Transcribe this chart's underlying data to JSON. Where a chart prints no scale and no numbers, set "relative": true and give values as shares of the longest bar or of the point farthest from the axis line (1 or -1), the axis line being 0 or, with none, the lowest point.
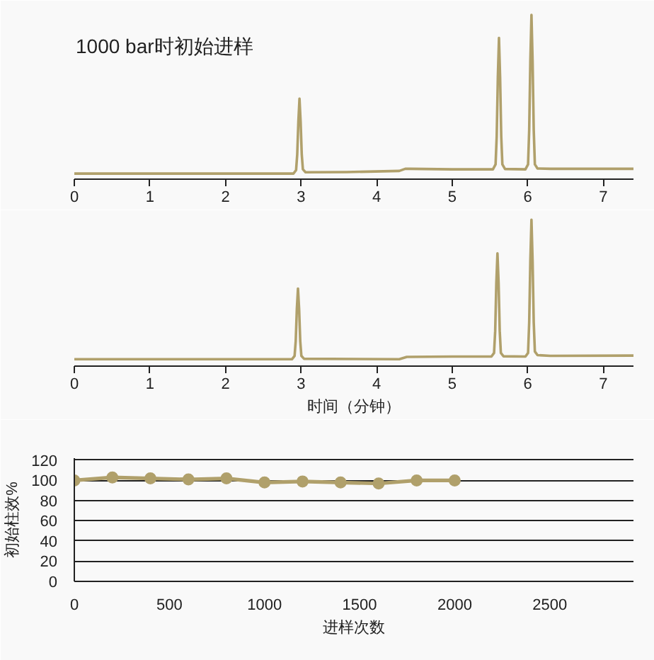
{
  "chart_data": [
    {
      "type": "line",
      "title": "1000 bar时初始进样",
      "relative": true,
      "x": [
        0,
        2.9,
        2.935,
        2.95,
        2.965,
        2.98,
        2.995,
        3.01,
        3.025,
        3.06,
        3.6,
        4.3,
        4.38,
        4.45,
        5.0,
        5.54,
        5.575,
        5.59,
        5.605,
        5.62,
        5.635,
        5.65,
        5.665,
        5.7,
        5.97,
        6.005,
        6.02,
        6.035,
        6.05,
        6.065,
        6.08,
        6.095,
        6.13,
        6.3,
        7.4
      ],
      "series": [
        {
          "color": "#b0a06b",
          "values": [
            0.034,
            0.034,
            0.055,
            0.15,
            0.35,
            0.49,
            0.35,
            0.15,
            0.06,
            0.042,
            0.043,
            0.05,
            0.063,
            0.063,
            0.06,
            0.06,
            0.09,
            0.26,
            0.62,
            0.86,
            0.62,
            0.26,
            0.09,
            0.062,
            0.06,
            0.09,
            0.3,
            0.72,
            1.0,
            0.72,
            0.3,
            0.09,
            0.065,
            0.063,
            0.063
          ]
        }
      ],
      "xlim": [
        0,
        7.4
      ],
      "xticks": [
        0,
        1,
        2,
        3,
        4,
        5,
        6,
        7
      ]
    },
    {
      "type": "line",
      "xlabel": "时间（分钟）",
      "relative": true,
      "x": [
        0,
        2.88,
        2.915,
        2.93,
        2.945,
        2.96,
        2.975,
        2.99,
        3.005,
        3.04,
        4.3,
        4.4,
        5.0,
        5.52,
        5.555,
        5.57,
        5.585,
        5.6,
        5.615,
        5.63,
        5.645,
        5.68,
        5.97,
        6.005,
        6.02,
        6.035,
        6.05,
        6.065,
        6.08,
        6.095,
        6.13,
        6.3,
        7.4
      ],
      "series": [
        {
          "color": "#b0a06b",
          "values": [
            0.047,
            0.047,
            0.07,
            0.17,
            0.39,
            0.53,
            0.39,
            0.17,
            0.07,
            0.05,
            0.047,
            0.063,
            0.065,
            0.065,
            0.09,
            0.24,
            0.57,
            0.77,
            0.57,
            0.24,
            0.09,
            0.067,
            0.065,
            0.09,
            0.3,
            0.72,
            1.0,
            0.72,
            0.3,
            0.1,
            0.075,
            0.07,
            0.072
          ]
        }
      ],
      "xlim": [
        0,
        7.4
      ],
      "xticks": [
        0,
        1,
        2,
        3,
        4,
        5,
        6,
        7
      ]
    },
    {
      "type": "line",
      "xlabel": "进样次数",
      "ylabel": "初始柱效%",
      "x": [
        0,
        200,
        400,
        600,
        800,
        1000,
        1200,
        1400,
        1600,
        1800,
        2000
      ],
      "series": [
        {
          "color": "#b0a06b",
          "values": [
            100,
            103,
            102,
            101,
            102,
            98,
            99,
            98,
            97,
            100,
            100
          ]
        }
      ],
      "xlim": [
        0,
        2940
      ],
      "xticks": [
        0,
        500,
        1000,
        1500,
        2000,
        2500
      ],
      "ylim": [
        0,
        120
      ],
      "yticks": [
        0,
        20,
        40,
        60,
        80,
        100,
        120
      ],
      "grid": "y",
      "marker": "circle"
    }
  ]
}
